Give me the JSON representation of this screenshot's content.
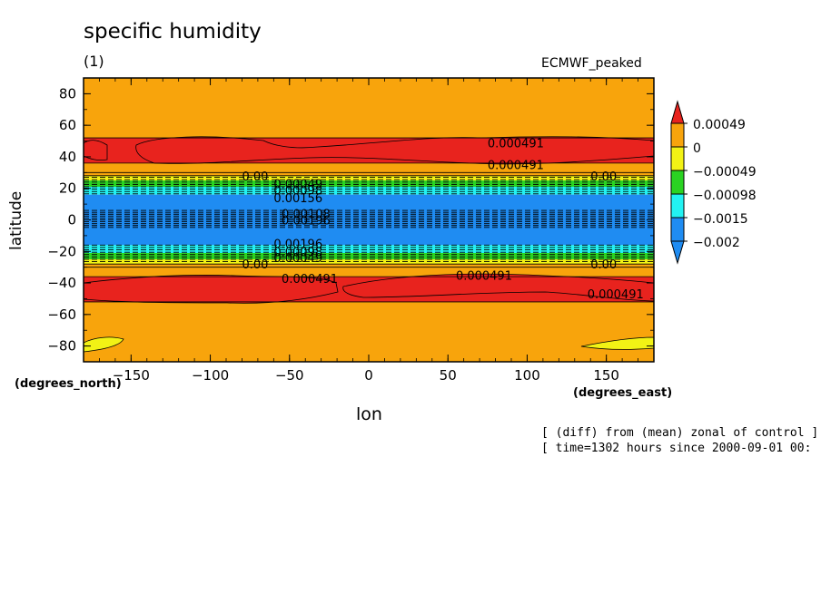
{
  "page": {
    "title": "specific humidity",
    "unit": "(1)",
    "dataset": "ECMWF_peaked",
    "note_line1": "[ (diff) from (mean) zonal of control ]",
    "note_line2": "[ time=1302 hours since 2000-09-01 00:"
  },
  "chart_data": {
    "type": "heatmap",
    "title": "specific humidity",
    "subtitle": "(1)",
    "xlabel": "lon",
    "ylabel": "latitude",
    "x_unit_label": "(degrees_east)",
    "y_unit_label": "(degrees_north)",
    "xlim": [
      -180,
      180
    ],
    "ylim": [
      -90,
      90
    ],
    "xticks": [
      -150,
      -100,
      -50,
      0,
      50,
      100,
      150
    ],
    "yticks": [
      80,
      60,
      40,
      20,
      0,
      -20,
      -40,
      -60,
      -80
    ],
    "colorbar": {
      "labels": [
        "0.00049",
        "0",
        "-0.00049",
        "-0.00098",
        "-0.0015",
        "-0.002"
      ],
      "colors": [
        "#e8231e",
        "#f8a40c",
        "#f2f215",
        "#2ad322",
        "#22f2f2",
        "#1f8cf2",
        "#1f8cf2"
      ]
    },
    "bands": [
      {
        "lat_from": 90,
        "lat_to": 52,
        "color": "#f8a40c"
      },
      {
        "lat_from": 52,
        "lat_to": 36,
        "color": "#e8231e"
      },
      {
        "lat_from": 36,
        "lat_to": 28,
        "color": "#f8a40c"
      },
      {
        "lat_from": 28,
        "lat_to": 25,
        "color": "#f2f215"
      },
      {
        "lat_from": 25,
        "lat_to": 21,
        "color": "#2ad322"
      },
      {
        "lat_from": 21,
        "lat_to": 16,
        "color": "#22f2f2"
      },
      {
        "lat_from": 16,
        "lat_to": -16,
        "color": "#1f8cf2"
      },
      {
        "lat_from": -16,
        "lat_to": -21,
        "color": "#22f2f2"
      },
      {
        "lat_from": -21,
        "lat_to": -25,
        "color": "#2ad322"
      },
      {
        "lat_from": -25,
        "lat_to": -28,
        "color": "#f2f215"
      },
      {
        "lat_from": -28,
        "lat_to": -36,
        "color": "#f8a40c"
      },
      {
        "lat_from": -36,
        "lat_to": -52,
        "color": "#e8231e"
      },
      {
        "lat_from": -52,
        "lat_to": -90,
        "color": "#f8a40c"
      }
    ],
    "contour_labels": [
      {
        "text": "0.000491",
        "lon": 75,
        "lat": 49
      },
      {
        "text": "0.000491",
        "lon": 75,
        "lat": 35
      },
      {
        "text": "0.00",
        "lon": -80,
        "lat": 28
      },
      {
        "text": "0.00",
        "lon": 140,
        "lat": 28
      },
      {
        "text": "0.00049",
        "lon": -60,
        "lat": 23
      },
      {
        "text": "0.00098",
        "lon": -60,
        "lat": 19
      },
      {
        "text": "0.00156",
        "lon": -60,
        "lat": 14
      },
      {
        "text": "0.00108",
        "lon": -55,
        "lat": 4
      },
      {
        "text": "0.00196",
        "lon": -55,
        "lat": 0
      },
      {
        "text": "0.00196",
        "lon": -60,
        "lat": -15
      },
      {
        "text": "0.00098",
        "lon": -60,
        "lat": -20
      },
      {
        "text": "0.00049",
        "lon": -60,
        "lat": -24
      },
      {
        "text": "0.00",
        "lon": -80,
        "lat": -28
      },
      {
        "text": "0.00",
        "lon": 140,
        "lat": -28
      },
      {
        "text": "0.000491",
        "lon": -55,
        "lat": -37
      },
      {
        "text": "0.000491",
        "lon": 55,
        "lat": -35
      },
      {
        "text": "0.000491",
        "lon": 138,
        "lat": -47
      }
    ]
  }
}
